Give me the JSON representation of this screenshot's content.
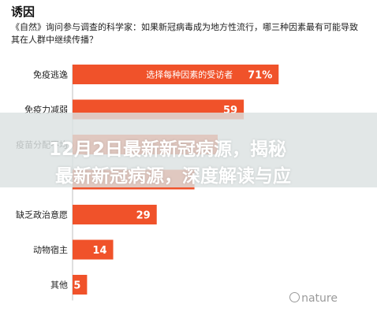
{
  "header": {
    "title": "诱因",
    "subtitle": "《自然》询问参与调查的科学家：如果新冠病毒成为地方性流行，哪三种因素最有可能导致其在人群中继续传播？"
  },
  "chart_data": {
    "type": "bar",
    "orientation": "horizontal",
    "categories": [
      "免疫逃逸",
      "免疫力减弱",
      "疫苗分配不均",
      "",
      "缺乏政治意愿",
      "动物宿主",
      "其他"
    ],
    "values": [
      71,
      59,
      50,
      42,
      29,
      14,
      5
    ],
    "value_labels": [
      "71%",
      "59",
      "",
      "",
      "29",
      "14",
      "5"
    ],
    "inline_label": "选择每种因素的受访者",
    "xlim": [
      0,
      100
    ],
    "bar_color": "#f0522a",
    "grid": false,
    "legend": "none"
  },
  "banner": {
    "line1": "12月2日最新新冠病源，揭秘",
    "line2": "最新新冠病源，深度解读与应"
  },
  "watermark": {
    "text": "nature"
  }
}
